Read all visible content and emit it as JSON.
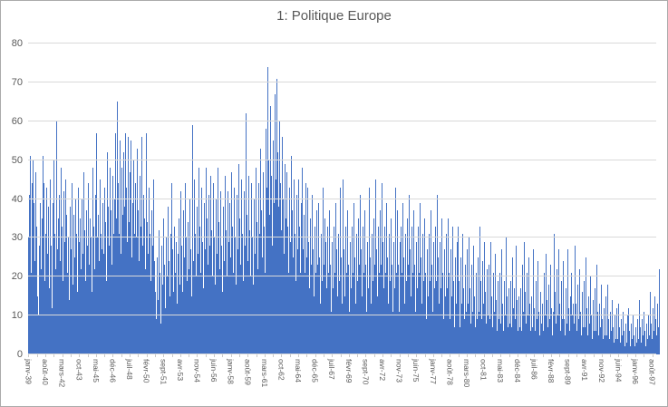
{
  "title": "1: Politique Europe",
  "colors": {
    "bar": "#4472C4",
    "gridline": "#D9D9D9",
    "axis_text": "#595959",
    "title_text": "#595959",
    "frame_border": "#ABABAB",
    "background": "#FFFFFF"
  },
  "y_axis": {
    "min": 0,
    "max": 80,
    "tick_interval": 10,
    "ticks": [
      80,
      70,
      60,
      50,
      40,
      30,
      20,
      10,
      0
    ]
  },
  "x_axis": {
    "label_interval_months": 19,
    "minor_tick_interval_months": 9.5,
    "tick_labels": [
      "janv-39",
      "août-40",
      "mars-42",
      "oct-43",
      "mai-45",
      "déc-46",
      "juil-48",
      "févr-50",
      "sept-51",
      "avr-53",
      "nov-54",
      "juin-56",
      "janv-58",
      "août-59",
      "mars-61",
      "oct-62",
      "mai-64",
      "déc-65",
      "juil-67",
      "févr-69",
      "sept-70",
      "avr-72",
      "nov-73",
      "juin-75",
      "janv-77",
      "août-78",
      "mars-80",
      "oct-81",
      "mai-83",
      "déc-84",
      "juil-86",
      "févr-88",
      "sept-89",
      "avr-91",
      "nov-92",
      "juin-94",
      "janv-96",
      "août-97"
    ]
  },
  "chart_data": {
    "type": "bar",
    "title": "1: Politique Europe",
    "xlabel": "",
    "ylabel": "",
    "ylim": [
      0,
      80
    ],
    "grid": "horizontal",
    "legend": "none",
    "frequency": "monthly",
    "x_start": "janv-39",
    "x_end": "déc-97",
    "visible_categories": [
      "janv-39",
      "août-40",
      "mars-42",
      "oct-43",
      "mai-45",
      "déc-46",
      "juil-48",
      "févr-50",
      "sept-51",
      "avr-53",
      "nov-54",
      "juin-56",
      "janv-58",
      "août-59",
      "mars-61",
      "oct-62",
      "mai-64",
      "déc-65",
      "juil-67",
      "févr-69",
      "sept-70",
      "avr-72",
      "nov-73",
      "juin-75",
      "janv-77",
      "août-78",
      "mars-80",
      "oct-81",
      "mai-83",
      "déc-84",
      "juil-86",
      "févr-88",
      "sept-89",
      "avr-91",
      "nov-92",
      "juin-94",
      "janv-96",
      "août-97"
    ],
    "values": [
      30,
      41,
      51,
      21,
      44,
      50,
      39,
      24,
      47,
      33,
      15,
      10,
      28,
      39,
      22,
      35,
      51,
      44,
      19,
      31,
      43,
      26,
      38,
      17,
      45,
      28,
      12,
      39,
      50,
      31,
      22,
      60,
      27,
      18,
      35,
      41,
      24,
      48,
      33,
      19,
      42,
      29,
      45,
      36,
      21,
      30,
      14,
      38,
      27,
      44,
      18,
      36,
      25,
      40,
      31,
      16,
      43,
      29,
      35,
      22,
      40,
      26,
      47,
      32,
      19,
      37,
      28,
      44,
      23,
      35,
      30,
      16,
      48,
      33,
      22,
      41,
      57,
      30,
      36,
      24,
      45,
      31,
      27,
      39,
      26,
      43,
      34,
      19,
      52,
      38,
      28,
      48,
      37,
      23,
      46,
      31,
      40,
      28,
      57,
      35,
      65,
      44,
      31,
      55,
      26,
      48,
      36,
      52,
      38,
      57,
      43,
      29,
      56,
      34,
      47,
      55,
      25,
      39,
      50,
      31,
      44,
      30,
      53,
      37,
      24,
      46,
      33,
      56,
      28,
      41,
      35,
      22,
      57,
      34,
      26,
      43,
      31,
      19,
      37,
      28,
      45,
      24,
      16,
      9,
      25,
      14,
      32,
      21,
      8,
      28,
      18,
      35,
      23,
      12,
      30,
      20,
      38,
      24,
      15,
      31,
      22,
      44,
      27,
      16,
      33,
      21,
      29,
      13,
      26,
      35,
      18,
      42,
      28,
      16,
      37,
      25,
      44,
      30,
      19,
      34,
      22,
      40,
      27,
      15,
      59,
      24,
      45,
      31,
      20,
      38,
      26,
      48,
      33,
      21,
      43,
      29,
      17,
      39,
      27,
      48,
      35,
      23,
      41,
      28,
      46,
      32,
      20,
      44,
      30,
      18,
      40,
      26,
      48,
      34,
      22,
      42,
      28,
      16,
      38,
      24,
      46,
      32,
      20,
      42,
      29,
      17,
      39,
      25,
      47,
      33,
      21,
      43,
      30,
      18,
      41,
      27,
      49,
      35,
      23,
      45,
      31,
      19,
      42,
      28,
      62,
      36,
      24,
      46,
      32,
      20,
      44,
      30,
      18,
      40,
      26,
      48,
      34,
      22,
      44,
      31,
      53,
      37,
      25,
      47,
      33,
      21,
      58,
      43,
      74,
      50,
      36,
      64,
      46,
      28,
      55,
      39,
      67,
      45,
      71,
      52,
      38,
      60,
      44,
      32,
      56,
      40,
      26,
      49,
      35,
      23,
      47,
      33,
      21,
      43,
      29,
      51,
      37,
      25,
      45,
      31,
      19,
      41,
      27,
      45,
      33,
      21,
      39,
      48,
      27,
      36,
      21,
      44,
      25,
      43,
      29,
      17,
      35,
      23,
      41,
      27,
      15,
      33,
      21,
      37,
      23,
      39,
      25,
      13,
      31,
      19,
      43,
      23,
      35,
      29,
      17,
      33,
      21,
      37,
      23,
      11,
      29,
      17,
      33,
      21,
      39,
      27,
      15,
      31,
      19,
      43,
      25,
      13,
      31,
      45,
      27,
      15,
      33,
      21,
      37,
      23,
      11,
      29,
      17,
      33,
      21,
      39,
      25,
      13,
      31,
      19,
      35,
      23,
      41,
      27,
      15,
      33,
      21,
      37,
      23,
      11,
      29,
      17,
      43,
      25,
      13,
      31,
      19,
      35,
      23,
      45,
      27,
      15,
      33,
      21,
      37,
      23,
      44,
      29,
      17,
      33,
      21,
      39,
      25,
      13,
      31,
      19,
      35,
      23,
      11,
      29,
      17,
      43,
      21,
      37,
      23,
      11,
      29,
      17,
      33,
      21,
      39,
      25,
      13,
      31,
      19,
      35,
      23,
      41,
      27,
      15,
      33,
      21,
      37,
      23,
      11,
      29,
      17,
      33,
      21,
      39,
      25,
      13,
      31,
      19,
      35,
      21,
      9,
      27,
      15,
      31,
      19,
      37,
      23,
      11,
      29,
      17,
      33,
      19,
      41,
      25,
      13,
      29,
      17,
      35,
      21,
      9,
      27,
      15,
      31,
      17,
      35,
      21,
      9,
      27,
      15,
      33,
      19,
      7,
      25,
      13,
      29,
      15,
      33,
      19,
      7,
      25,
      13,
      31,
      17,
      9,
      23,
      11,
      27,
      13,
      30,
      17,
      8,
      23,
      11,
      28,
      15,
      7,
      21,
      9,
      25,
      11,
      33,
      19,
      9,
      24,
      13,
      29,
      16,
      8,
      22,
      10,
      23,
      9,
      29,
      15,
      7,
      21,
      11,
      26,
      14,
      6,
      19,
      9,
      21,
      8,
      27,
      13,
      6,
      19,
      10,
      30,
      15,
      7,
      17,
      8,
      19,
      7,
      25,
      12,
      6,
      17,
      9,
      28,
      14,
      6,
      15,
      7,
      17,
      6,
      23,
      11,
      29,
      16,
      8,
      21,
      10,
      25,
      13,
      6,
      15,
      7,
      27,
      12,
      6,
      19,
      9,
      24,
      11,
      5,
      16,
      8,
      13,
      6,
      21,
      10,
      26,
      14,
      7,
      18,
      9,
      23,
      12,
      5,
      11,
      31,
      16,
      8,
      22,
      10,
      27,
      13,
      6,
      19,
      9,
      24,
      9,
      5,
      17,
      8,
      27,
      12,
      6,
      15,
      7,
      21,
      10,
      13,
      8,
      28,
      13,
      6,
      18,
      9,
      22,
      11,
      5,
      16,
      7,
      19,
      7,
      25,
      12,
      5,
      15,
      8,
      20,
      10,
      4,
      14,
      6,
      17,
      6,
      23,
      11,
      5,
      13,
      7,
      18,
      9,
      4,
      12,
      5,
      15,
      5,
      18,
      9,
      4,
      11,
      6,
      14,
      7,
      3,
      10,
      4,
      12,
      4,
      13,
      7,
      3,
      9,
      5,
      11,
      6,
      2,
      8,
      3,
      10,
      3,
      12,
      6,
      2,
      8,
      4,
      10,
      5,
      2,
      7,
      3,
      9,
      4,
      14,
      7,
      3,
      9,
      5,
      11,
      6,
      2,
      8,
      4,
      10,
      5,
      16,
      8,
      4,
      12,
      6,
      15,
      9,
      5,
      13,
      7,
      22
    ]
  }
}
